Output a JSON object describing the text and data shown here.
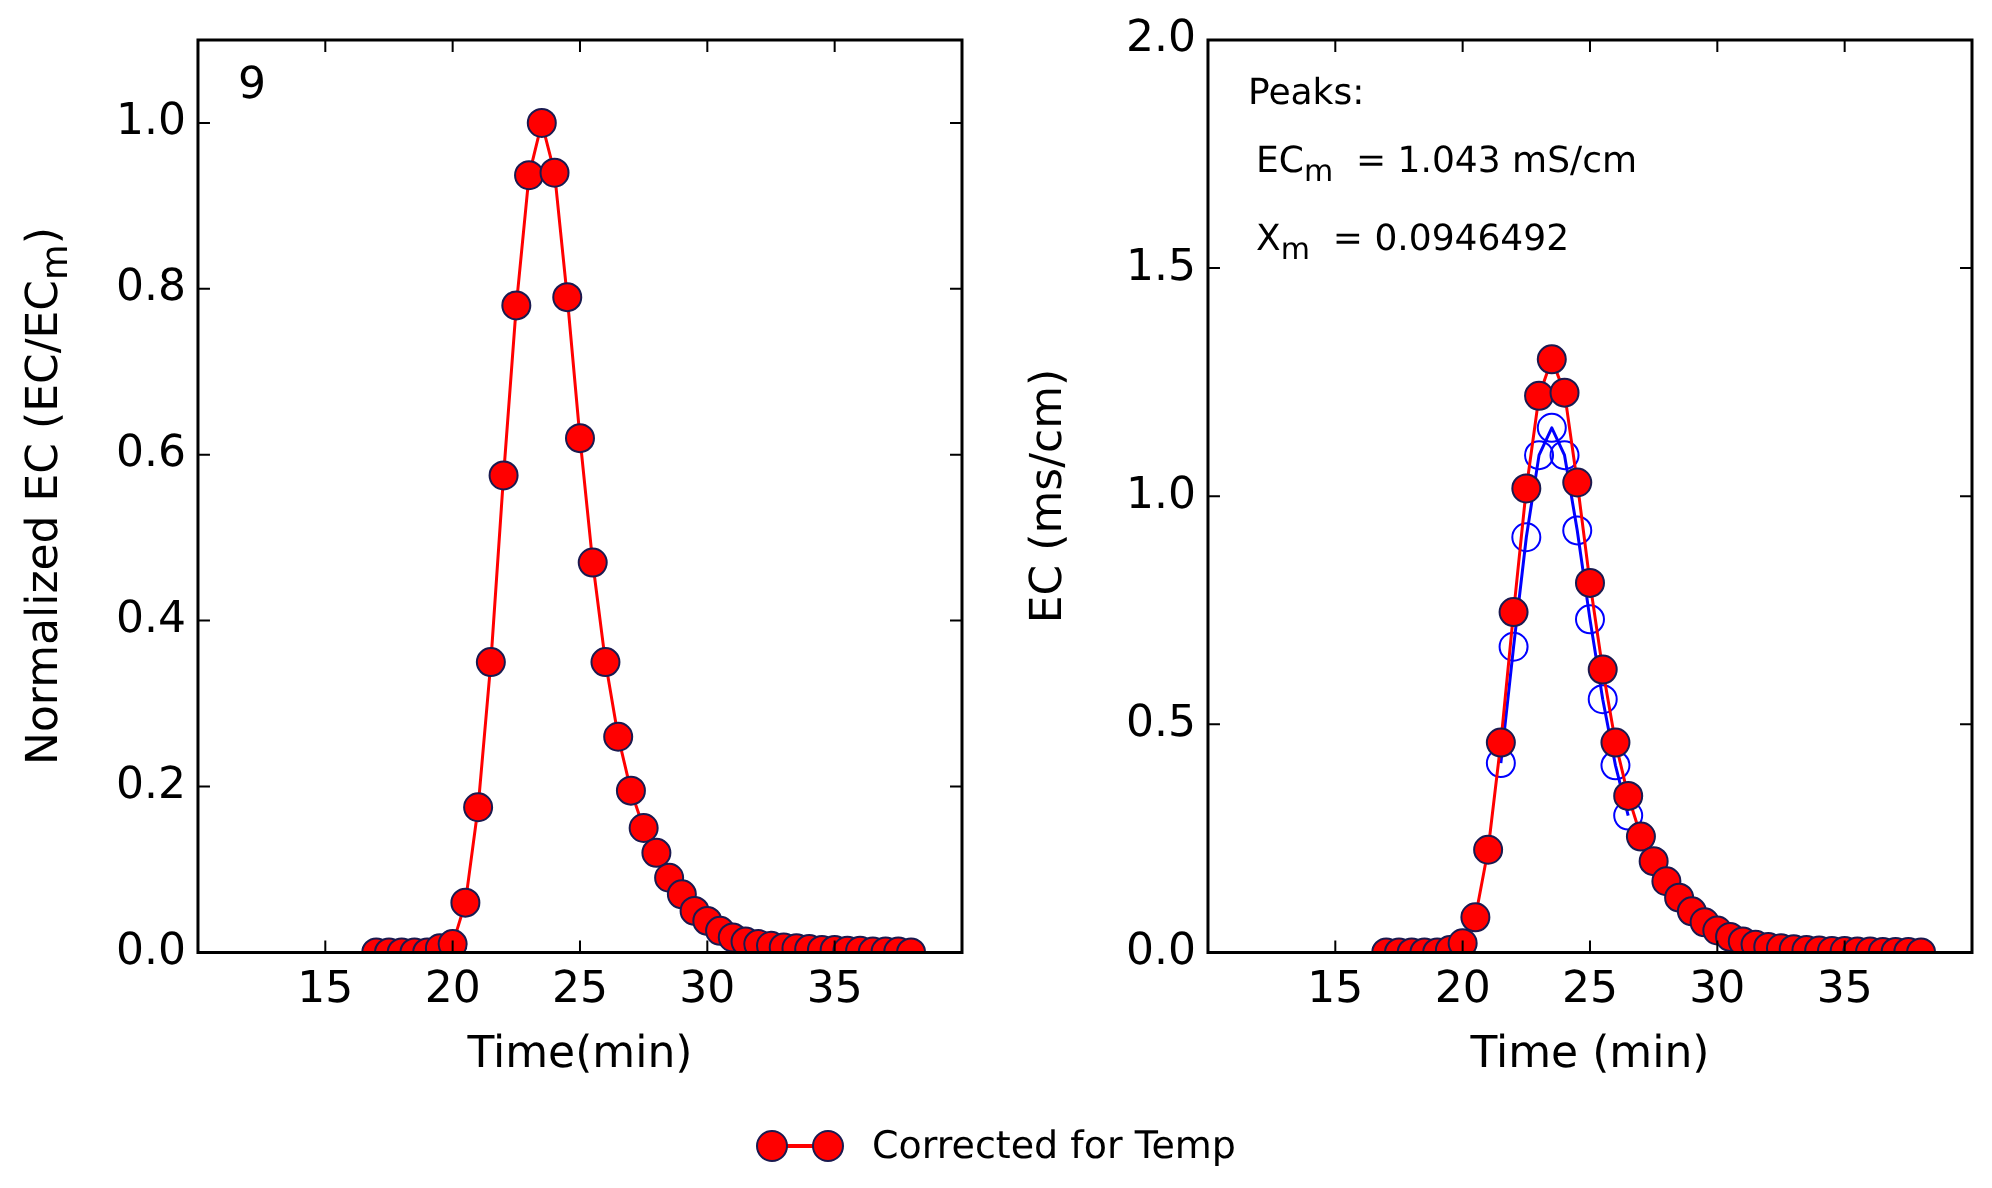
{
  "chart_data": [
    {
      "type": "line",
      "xlabel": "Time(min)",
      "ylabel": "Normalized EC (EC/EC$_{m}$)",
      "annotations": [
        "9"
      ],
      "xlim": [
        10,
        40
      ],
      "xticks": [
        15,
        20,
        25,
        30,
        35
      ],
      "ylim": [
        0,
        1.1
      ],
      "yticks": [
        {
          "value": 0,
          "label": "0.0"
        },
        {
          "value": 0.2,
          "label": "0.2"
        },
        {
          "value": 0.4,
          "label": "0.4"
        },
        {
          "value": 0.6,
          "label": "0.6"
        },
        {
          "value": 0.8,
          "label": "0.8"
        },
        {
          "value": 1,
          "label": "1.0"
        }
      ],
      "marker": "circle",
      "legend": "bottom",
      "grid": false,
      "x": [
        17,
        17.5,
        18,
        18.5,
        19,
        19.5,
        20,
        20.5,
        21,
        21.5,
        22,
        22.5,
        23,
        23.5,
        24,
        24.5,
        25,
        25.5,
        26,
        26.5,
        27,
        27.5,
        28,
        28.5,
        29,
        29.5,
        30,
        30.5,
        31,
        31.5,
        32,
        32.5,
        33,
        33.5,
        34,
        34.5,
        35,
        35.5,
        36,
        36.5,
        37,
        37.5,
        38
      ],
      "series": [
        {
          "name": "Corrected for Temp",
          "color": "#ff0000",
          "values": [
            0,
            0,
            0,
            0,
            0,
            0.005,
            0.01,
            0.06,
            0.175,
            0.35,
            0.575,
            0.78,
            0.937,
            1.0,
            0.94,
            0.79,
            0.62,
            0.47,
            0.35,
            0.26,
            0.195,
            0.15,
            0.12,
            0.09,
            0.07,
            0.05,
            0.038,
            0.026,
            0.018,
            0.013,
            0.01,
            0.008,
            0.006,
            0.005,
            0.004,
            0.003,
            0.003,
            0.002,
            0.002,
            0.001,
            0.001,
            0.001,
            0
          ]
        }
      ]
    },
    {
      "type": "line",
      "xlabel": "Time (min)",
      "ylabel": "EC (ms/cm)",
      "annotations": [
        "Peaks:",
        "EC$_{m}$  = 1.043 mS/cm",
        "X$_{m}$  = 0.0946492"
      ],
      "xlim": [
        10,
        40
      ],
      "xticks": [
        15,
        20,
        25,
        30,
        35
      ],
      "ylim": [
        0,
        2
      ],
      "yticks": [
        {
          "value": 0,
          "label": "0.0"
        },
        {
          "value": 0.5,
          "label": "0.5"
        },
        {
          "value": 1,
          "label": "1.0"
        },
        {
          "value": 1.5,
          "label": "1.5"
        },
        {
          "value": 2,
          "label": "2.0"
        }
      ],
      "marker": "circle",
      "legend": "bottom",
      "grid": false,
      "x": [
        17,
        17.5,
        18,
        18.5,
        19,
        19.5,
        20,
        20.5,
        21,
        21.5,
        22,
        22.5,
        23,
        23.5,
        24,
        24.5,
        25,
        25.5,
        26,
        26.5,
        27,
        27.5,
        28,
        28.5,
        29,
        29.5,
        30,
        30.5,
        31,
        31.5,
        32,
        32.5,
        33,
        33.5,
        34,
        34.5,
        35,
        35.5,
        36,
        36.5,
        37,
        37.5,
        38
      ],
      "series": [
        {
          "color": "#0000ff",
          "values": [
            null,
            null,
            null,
            null,
            null,
            null,
            null,
            null,
            null,
            0.415,
            0.67,
            0.91,
            1.09,
            1.15,
            1.09,
            0.925,
            0.73,
            0.555,
            0.41,
            0.3,
            null,
            null,
            null,
            null,
            null,
            null,
            null,
            null,
            null,
            null,
            null,
            null,
            null,
            null,
            null,
            null,
            null,
            null,
            null,
            null,
            null,
            null,
            null
          ]
        },
        {
          "name": "Corrected for Temp",
          "color": "#ff0000",
          "values": [
            0,
            0,
            0,
            0,
            0,
            0.005,
            0.02,
            0.077,
            0.225,
            0.46,
            0.746,
            1.017,
            1.22,
            1.3,
            1.227,
            1.03,
            0.81,
            0.62,
            0.46,
            0.343,
            0.254,
            0.2,
            0.156,
            0.12,
            0.09,
            0.066,
            0.048,
            0.034,
            0.024,
            0.017,
            0.012,
            0.009,
            0.007,
            0.005,
            0.004,
            0.003,
            0.003,
            0.002,
            0.002,
            0.001,
            0.001,
            0.001,
            0
          ]
        }
      ]
    }
  ]
}
